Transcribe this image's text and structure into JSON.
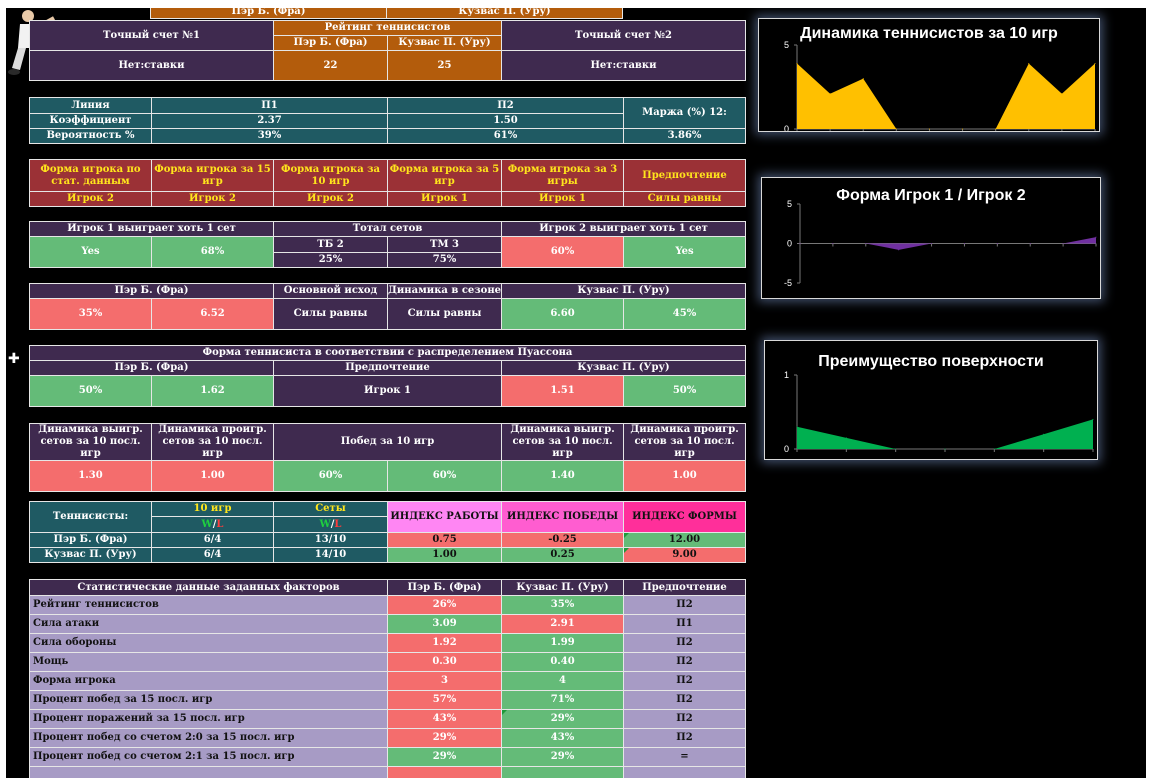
{
  "header": {
    "top_left_name": "Пэр Б. (Фра)",
    "top_right_name": "Кузвас П. (Уру)",
    "exact_score_1": "Точный счет №1",
    "exact_score_2": "Точный счет №2",
    "rating_title": "Рейтинг теннисистов",
    "p1_name": "Пэр Б. (Фра)",
    "p2_name": "Кузвас П. (Уру)",
    "no_bet_1": "Нет:ставки",
    "no_bet_2": "Нет:ставки",
    "rating_p1": "22",
    "rating_p2": "25"
  },
  "odds": {
    "line_label": "Линия",
    "p1": "П1",
    "p2": "П2",
    "margin_label": "Маржа (%) 12:",
    "coef_label": "Коэффициент",
    "coef_p1": "2.37",
    "coef_p2": "1.50",
    "prob_label": "Вероятность %",
    "prob_p1": "39%",
    "prob_p2": "61%",
    "margin_value": "3.86%"
  },
  "form": {
    "headers": [
      "Форма игрока по стат. данным",
      "Форма игрока за 15 игр",
      "Форма игрока за 10 игр",
      "Форма игрока за 5 игр",
      "Форма игрока за 3 игры",
      "Предпочтение"
    ],
    "values": [
      "Игрок 2",
      "Игрок 2",
      "Игрок 2",
      "Игрок 1",
      "Игрок 1",
      "Силы равны"
    ]
  },
  "sets": {
    "p1_win_set": "Игрок 1 выиграет хоть 1 сет",
    "total_sets": "Тотал сетов",
    "p2_win_set": "Игрок 2 выиграет хоть 1 сет",
    "tb": "ТБ 2",
    "tm": "ТМ 3",
    "tb_val": "25%",
    "tm_val": "75%",
    "p1_yes": "Yes",
    "p1_pct": "68%",
    "p2_pct": "60%",
    "p2_yes": "Yes"
  },
  "outcome": {
    "p1_name": "Пэр Б. (Фра)",
    "main_label": "Основной исход",
    "season_label": "Динамика в сезоне",
    "p2_name": "Кузвас П. (Уру)",
    "p1_pct": "35%",
    "p1_coef": "6.52",
    "main_val": "Силы равны",
    "season_val": "Силы равны",
    "p2_coef": "6.60",
    "p2_pct": "45%"
  },
  "poisson": {
    "title": "Форма теннисиста в соответствии с распределением Пуассона",
    "p1_name": "Пэр Б. (Фра)",
    "pref_label": "Предпочтение",
    "p2_name": "Кузвас П. (Уру)",
    "p1_pct": "50%",
    "p1_coef": "1.62",
    "pref_val": "Игрок 1",
    "p2_coef": "1.51",
    "p2_pct": "50%"
  },
  "dynamics": {
    "won_sets_label": "Динамика выигр. сетов за 10 посл. игр",
    "lost_sets_label": "Динамика проигр. сетов за 10 посл. игр",
    "wins_label": "Побед за 10 игр",
    "p1_won": "1.30",
    "p1_lost": "1.00",
    "p1_wins": "60%",
    "p2_wins": "60%",
    "p2_won": "1.40",
    "p2_lost": "1.00"
  },
  "index": {
    "players_label": "Теннисисты:",
    "games_label": "10 игр",
    "sets_label": "Сеты",
    "w": "W",
    "slash": "/",
    "l": "L",
    "work_label": "ИНДЕКС РАБОТЫ",
    "win_label": "ИНДЕКС ПОБЕДЫ",
    "form_label": "ИНДЕКС ФОРМЫ",
    "rows": [
      {
        "name": "Пэр Б. (Фра)",
        "games": "6/4",
        "sets": "13/10",
        "work": "0.75",
        "win": "-0.25",
        "form": "12.00"
      },
      {
        "name": "Кузвас П. (Уру)",
        "games": "6/4",
        "sets": "14/10",
        "work": "1.00",
        "win": "0.25",
        "form": "9.00"
      }
    ]
  },
  "stats": {
    "header": [
      "Статистические данные заданных факторов",
      "Пэр Б. (Фра)",
      "Кузвас П. (Уру)",
      "Предпочтение"
    ],
    "rows": [
      {
        "label": "Рейтинг теннисистов",
        "p1": "26%",
        "p2": "35%",
        "pref": "П2"
      },
      {
        "label": "Сила атаки",
        "p1": "3.09",
        "p2": "2.91",
        "pref": "П1"
      },
      {
        "label": "Сила обороны",
        "p1": "1.92",
        "p2": "1.99",
        "pref": "П2"
      },
      {
        "label": "Мощь",
        "p1": "0.30",
        "p2": "0.40",
        "pref": "П2"
      },
      {
        "label": "Форма игрока",
        "p1": "3",
        "p2": "4",
        "pref": "П2"
      },
      {
        "label": "Процент побед за 15 посл. игр",
        "p1": "57%",
        "p2": "71%",
        "pref": "П2"
      },
      {
        "label": "Процент поражений за 15 посл. игр",
        "p1": "43%",
        "p2": "29%",
        "pref": "П2"
      },
      {
        "label": "Процент побед со счетом 2:0 за 15 посл. игр",
        "p1": "29%",
        "p2": "43%",
        "pref": "П2"
      },
      {
        "label": "Процент побед со счетом 2:1 за 15 посл. игр",
        "p1": "29%",
        "p2": "29%",
        "pref": "="
      }
    ]
  },
  "charts": [
    {
      "title": "Динамика теннисистов за 10 игр",
      "ylim": [
        0,
        5
      ],
      "ticks": [
        "5",
        "0"
      ],
      "color": "#ffc000",
      "values": [
        3.9,
        2.1,
        3.0,
        0,
        0,
        0,
        0,
        3.9,
        2.1,
        3.9
      ]
    },
    {
      "title": "Форма Игрок 1 / Игрок 2",
      "ylim": [
        -5,
        5
      ],
      "ticks": [
        "5",
        "0",
        "-5"
      ],
      "color": "#7030a0",
      "values": [
        0,
        0,
        0,
        -0.8,
        0,
        0,
        0,
        0,
        0,
        0.8
      ]
    },
    {
      "title": "Преимущество поверхности",
      "ylim": [
        0,
        1
      ],
      "ticks": [
        "1",
        "0"
      ],
      "color": "#00b050",
      "values": [
        0.3,
        0.15,
        0,
        0,
        0,
        0.2,
        0.4
      ]
    }
  ]
}
